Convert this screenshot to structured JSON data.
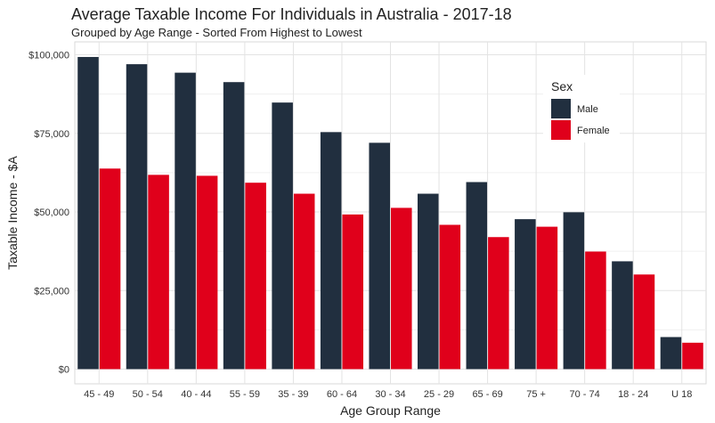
{
  "chart_data": {
    "type": "bar",
    "title": "Average Taxable Income For Individuals in Australia - 2017-18",
    "subtitle": "Grouped by Age Range - Sorted From Highest to Lowest",
    "xlabel": "Age Group Range",
    "ylabel": "Taxable Income - $A",
    "ylim": [
      0,
      105000
    ],
    "yticks": [
      0,
      25000,
      50000,
      75000,
      100000
    ],
    "ytick_labels": [
      "$0",
      "$25,000",
      "$50,000",
      "$75,000",
      "$100,000"
    ],
    "grid": true,
    "legend_title": "Sex",
    "legend_position": "top-right",
    "categories": [
      "45 - 49",
      "50 - 54",
      "40 - 44",
      "55 - 59",
      "35 - 39",
      "60 - 64",
      "30 - 34",
      "25 - 29",
      "65 - 69",
      "75 +",
      "70 - 74",
      "18 - 24",
      "U 18"
    ],
    "series": [
      {
        "name": "Male",
        "color": "#212f3f",
        "values": [
          99300,
          97000,
          94300,
          91300,
          84800,
          75400,
          72000,
          55800,
          59500,
          47700,
          49900,
          34300,
          10200
        ]
      },
      {
        "name": "Female",
        "color": "#e0001b",
        "values": [
          63800,
          61800,
          61500,
          59300,
          55800,
          49200,
          51300,
          45900,
          42000,
          45300,
          37400,
          30100,
          8400
        ]
      }
    ]
  }
}
